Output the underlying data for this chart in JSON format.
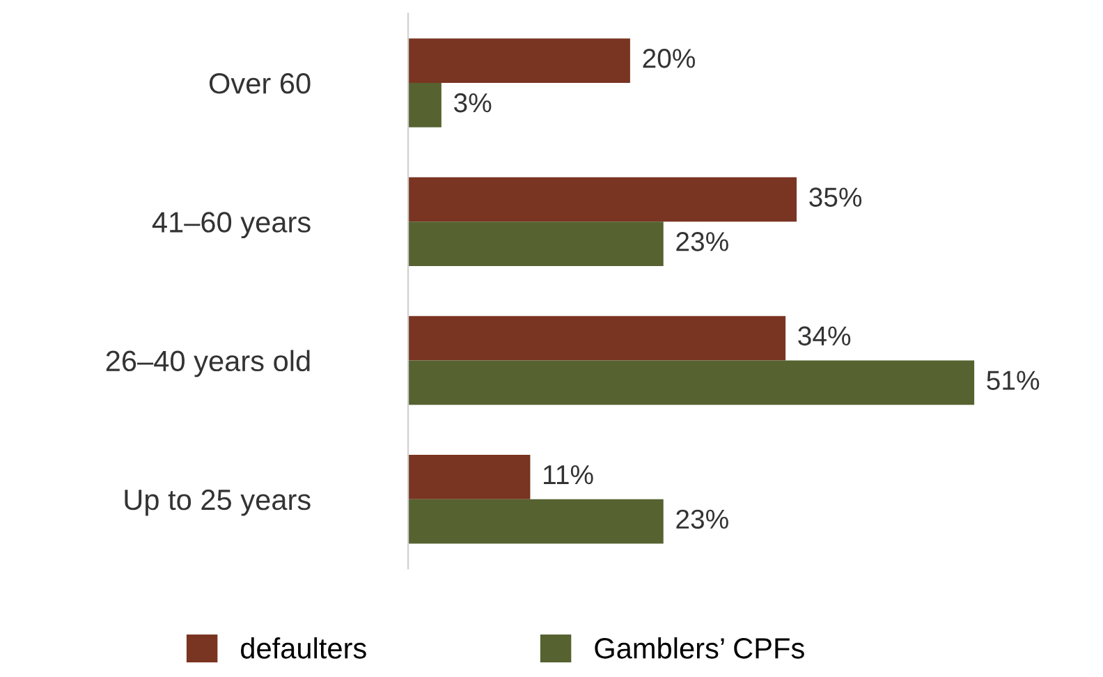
{
  "chart_data": {
    "type": "bar",
    "orientation": "horizontal",
    "categories": [
      "Over 60",
      "41–60 years",
      "26–40 years old",
      "Up to 25 years"
    ],
    "series": [
      {
        "name": "defaulters",
        "color": "#7a3422",
        "values": [
          20,
          35,
          34,
          11
        ],
        "value_labels": [
          "20%",
          "35%",
          "34%",
          "11%"
        ]
      },
      {
        "name": "Gamblers’ CPFs",
        "color": "#566230",
        "values": [
          3,
          23,
          51,
          23
        ],
        "value_labels": [
          "3%",
          "23%",
          "51%",
          "23%"
        ]
      }
    ],
    "legend": "bottom",
    "grid": false
  }
}
